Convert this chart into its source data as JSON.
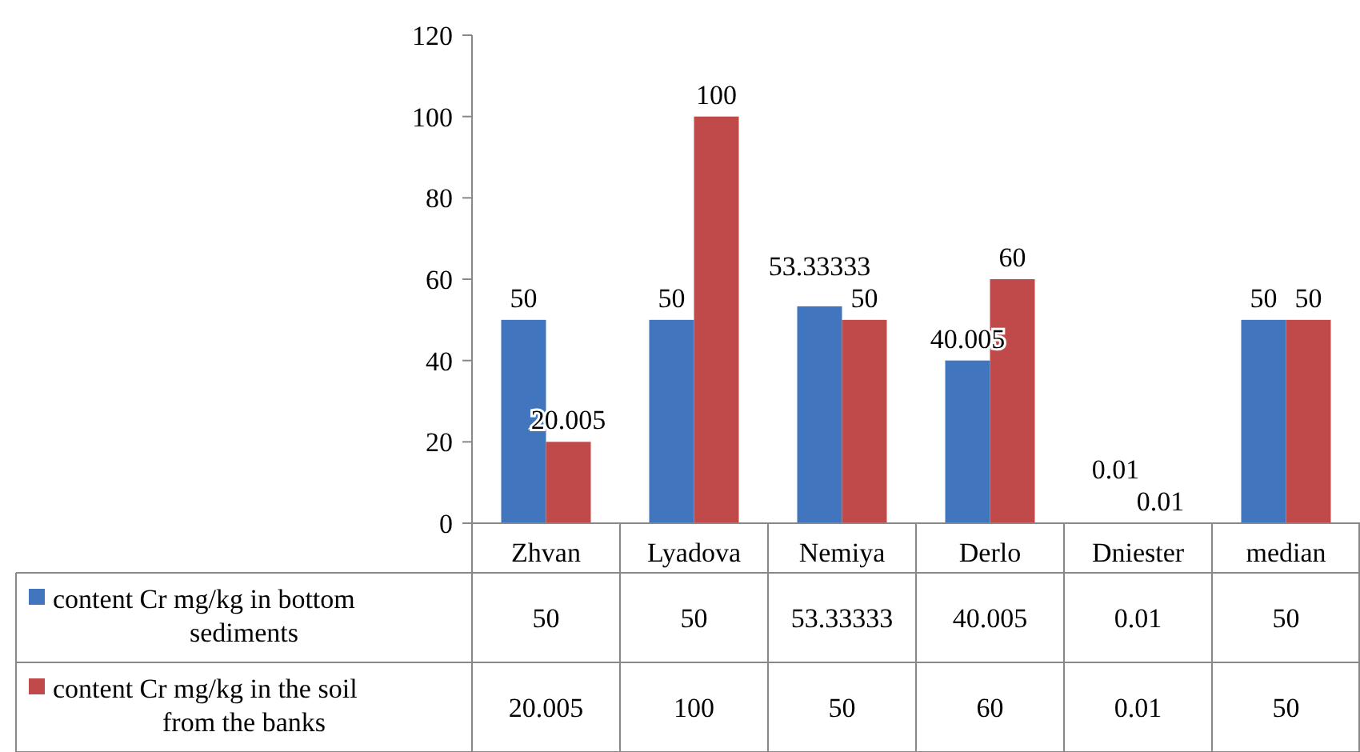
{
  "chart_data": {
    "type": "bar",
    "categories": [
      "Zhvan",
      "Lyadova",
      "Nemiya",
      "Derlo",
      "Dniester",
      "median"
    ],
    "series": [
      {
        "name": "content Cr mg/kg in bottom sediments",
        "color": "#4175be",
        "values": [
          50,
          50,
          53.33333,
          40.005,
          0.01,
          50
        ]
      },
      {
        "name": "content Cr mg/kg in the soil from the banks",
        "color": "#c0494a",
        "values": [
          20.005,
          100,
          50,
          60,
          0.01,
          50
        ]
      }
    ],
    "annotations": [
      {
        "text": "50",
        "x": "Zhvan",
        "y": 50
      },
      {
        "text": "20.005",
        "x": "Zhvan",
        "y": 20.005
      },
      {
        "text": "50",
        "x": "Lyadova",
        "y": 50
      },
      {
        "text": "100",
        "x": "Lyadova",
        "y": 100
      },
      {
        "text": "53.33333",
        "x": "Nemiya",
        "y": 53.33333
      },
      {
        "text": "50",
        "x": "Nemiya",
        "y": 50
      },
      {
        "text": "40.005",
        "x": "Derlo",
        "y": 40.005
      },
      {
        "text": "60",
        "x": "Derlo",
        "y": 60
      },
      {
        "text": "0.01",
        "x": "Dniester",
        "y": 0.01
      },
      {
        "text": "0.01",
        "x": "Dniester",
        "y": 0.01
      },
      {
        "text": "50",
        "x": "median",
        "y": 50
      },
      {
        "text": "50",
        "x": "median",
        "y": 50
      }
    ],
    "ylim": [
      0,
      120
    ],
    "yticks": [
      0,
      20,
      40,
      60,
      80,
      100,
      120
    ],
    "data_labels": true,
    "legend": "bottom",
    "grid": false
  }
}
